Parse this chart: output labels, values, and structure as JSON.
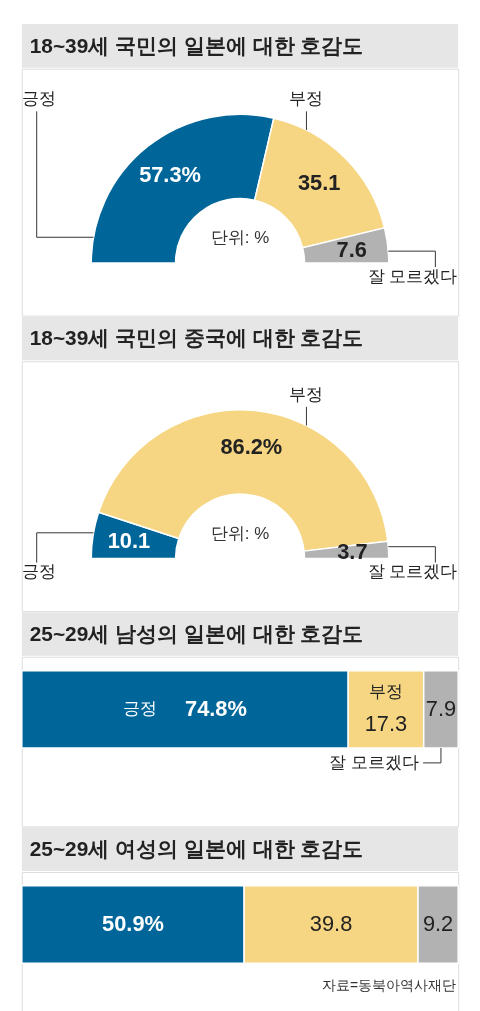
{
  "chart_data": [
    {
      "type": "donut",
      "title": "18~39세 국민의 일본에 대한 호감도",
      "categories": [
        "긍정",
        "부정",
        "잘 모르겠다"
      ],
      "values": [
        57.3,
        35.1,
        7.6
      ],
      "colors": [
        "#00669a",
        "#f6d683",
        "#b2b2b2"
      ],
      "value_labels": [
        "57.3%",
        "35.1",
        "7.6"
      ],
      "annotations": [
        "단위: %"
      ]
    },
    {
      "type": "donut",
      "title": "18~39세 국민의 중국에 대한 호감도",
      "categories": [
        "긍정",
        "부정",
        "잘 모르겠다"
      ],
      "values": [
        10.1,
        86.2,
        3.7
      ],
      "colors": [
        "#00669a",
        "#f6d683",
        "#b2b2b2"
      ],
      "value_labels": [
        "10.1",
        "86.2%",
        "3.7"
      ],
      "annotations": [
        "단위: %"
      ]
    },
    {
      "type": "bar",
      "title": "25~29세 남성의 일본에 대한 호감도",
      "orientation": "horizontal",
      "stacked": true,
      "categories": [
        null
      ],
      "series": [
        {
          "name": "긍정",
          "color": "#00669a",
          "values": [
            74.8
          ],
          "value_labels": [
            "74.8%"
          ]
        },
        {
          "name": "부정",
          "color": "#f6d683",
          "values": [
            17.3
          ],
          "value_labels": [
            "17.3"
          ]
        },
        {
          "name": "잘 모르겠다",
          "color": "#b2b2b2",
          "values": [
            7.9
          ],
          "value_labels": [
            "7.9"
          ]
        }
      ]
    },
    {
      "type": "bar",
      "title": "25~29세 여성의 일본에 대한 호감도",
      "orientation": "horizontal",
      "stacked": true,
      "categories": [
        null
      ],
      "series": [
        {
          "color": "#00669a",
          "values": [
            50.9
          ],
          "value_labels": [
            "50.9%"
          ]
        },
        {
          "color": "#f6d683",
          "values": [
            39.8
          ],
          "value_labels": [
            "39.8"
          ]
        },
        {
          "color": "#b2b2b2",
          "values": [
            9.2
          ],
          "value_labels": [
            "9.2"
          ]
        }
      ],
      "annotations": [
        "자료=동북아역사재단"
      ]
    }
  ]
}
